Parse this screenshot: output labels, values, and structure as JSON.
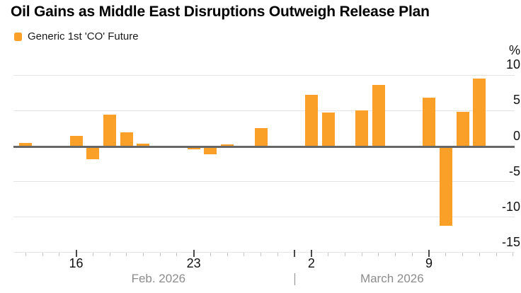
{
  "title": "Oil Gains as Middle East Disruptions Outweigh Release Plan",
  "legend": {
    "label": "Generic 1st 'CO' Future",
    "swatch_color": "#FAA028"
  },
  "chart_data": {
    "type": "bar",
    "title": "Oil Gains as Middle East Disruptions Outweigh Release Plan",
    "series_name": "Generic 1st 'CO' Future",
    "unit_label": "%",
    "ylabel": "%",
    "ylim": [
      -15,
      10
    ],
    "yticks": [
      10,
      5,
      0,
      -5,
      -10,
      -15
    ],
    "grid": true,
    "legend_position": "top-left",
    "y_axis_side": "right",
    "points": [
      {
        "date": "Feb 13",
        "day_index": 0,
        "value": 0.4
      },
      {
        "date": "Feb 16",
        "day_index": 3,
        "value": 1.4
      },
      {
        "date": "Feb 17",
        "day_index": 4,
        "value": -1.8
      },
      {
        "date": "Feb 18",
        "day_index": 5,
        "value": 4.4
      },
      {
        "date": "Feb 19",
        "day_index": 6,
        "value": 1.9
      },
      {
        "date": "Feb 20",
        "day_index": 7,
        "value": 0.3
      },
      {
        "date": "Feb 23",
        "day_index": 10,
        "value": -0.4
      },
      {
        "date": "Feb 24",
        "day_index": 11,
        "value": -1.1
      },
      {
        "date": "Feb 25",
        "day_index": 12,
        "value": 0.2
      },
      {
        "date": "Feb 26",
        "day_index": 13,
        "value": -0.2
      },
      {
        "date": "Feb 27",
        "day_index": 14,
        "value": 2.5
      },
      {
        "date": "Mar 2",
        "day_index": 17,
        "value": 7.2
      },
      {
        "date": "Mar 3",
        "day_index": 18,
        "value": 4.7
      },
      {
        "date": "Mar 4",
        "day_index": 19,
        "value": 0.0
      },
      {
        "date": "Mar 5",
        "day_index": 20,
        "value": 5.0
      },
      {
        "date": "Mar 6",
        "day_index": 21,
        "value": 8.6
      },
      {
        "date": "Mar 9",
        "day_index": 24,
        "value": 6.8
      },
      {
        "date": "Mar 10",
        "day_index": 25,
        "value": -11.2
      },
      {
        "date": "Mar 11",
        "day_index": 26,
        "value": 4.8
      },
      {
        "date": "Mar 12",
        "day_index": 27,
        "value": 9.5
      }
    ],
    "x_day_labels": [
      {
        "label": "16",
        "day_index": 3
      },
      {
        "label": "23",
        "day_index": 10
      },
      {
        "label": "2",
        "day_index": 17
      },
      {
        "label": "9",
        "day_index": 24
      }
    ],
    "month_labels": [
      "Feb. 2026",
      "March 2026"
    ],
    "bar_color": "#FAA028"
  },
  "colors": {
    "background": "#FFFFFF",
    "bar": "#FAA028",
    "gridline": "#E4E4E4",
    "zero_line": "#676767",
    "axis_label": "#111111",
    "month_label": "#8C8C8C",
    "tick_minor": "#C6C6C6",
    "tick_major": "#4A4A4A",
    "title": "#000000"
  }
}
